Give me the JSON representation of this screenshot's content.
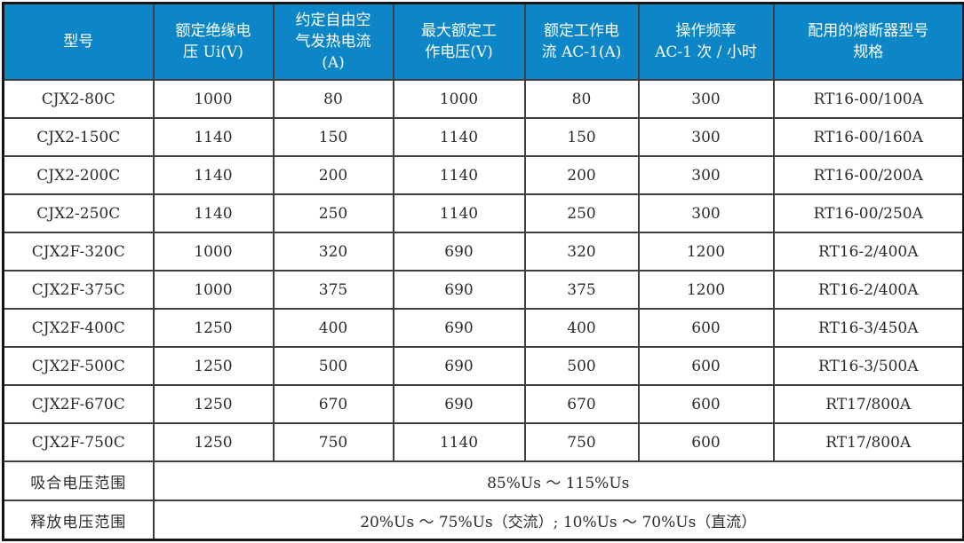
{
  "table": {
    "title_semantic": "contactor-specification-table",
    "colors": {
      "header_bg": "#0d86c8",
      "header_text": "#ffffff",
      "body_text": "#2b2b2b",
      "grid_line": "#3f3f3f",
      "outer_border": "#141414",
      "background": "#ffffff"
    },
    "columns": [
      "型号",
      "额定绝缘电\n压 Ui(V)",
      "约定自由空\n气发热电流\n(A)",
      "最大额定工\n作电压(V)",
      "额定工作电\n流 AC-1(A)",
      "操作频率\nAC-1 次 / 小时",
      "配用的熔断器型号\n规格"
    ],
    "rows": [
      [
        "CJX2-80C",
        "1000",
        "80",
        "1000",
        "80",
        "300",
        "RT16-00/100A"
      ],
      [
        "CJX2-150C",
        "1140",
        "150",
        "1140",
        "150",
        "300",
        "RT16-00/160A"
      ],
      [
        "CJX2-200C",
        "1140",
        "200",
        "1140",
        "200",
        "300",
        "RT16-00/200A"
      ],
      [
        "CJX2-250C",
        "1140",
        "250",
        "1140",
        "250",
        "300",
        "RT16-00/250A"
      ],
      [
        "CJX2F-320C",
        "1000",
        "320",
        "690",
        "320",
        "1200",
        "RT16-2/400A"
      ],
      [
        "CJX2F-375C",
        "1000",
        "375",
        "690",
        "375",
        "1200",
        "RT16-2/400A"
      ],
      [
        "CJX2F-400C",
        "1250",
        "400",
        "690",
        "400",
        "600",
        "RT16-3/450A"
      ],
      [
        "CJX2F-500C",
        "1250",
        "500",
        "690",
        "500",
        "600",
        "RT16-3/500A"
      ],
      [
        "CJX2F-670C",
        "1250",
        "670",
        "690",
        "670",
        "600",
        "RT17/800A"
      ],
      [
        "CJX2F-750C",
        "1250",
        "750",
        "1140",
        "750",
        "600",
        "RT17/800A"
      ]
    ],
    "footer_rows": [
      {
        "label": "吸合电压范围",
        "value": "85%Us ～ 115%Us"
      },
      {
        "label": "释放电压范围",
        "value": "20%Us ～ 75%Us（交流）; 10%Us ～ 70%Us（直流）"
      }
    ]
  }
}
